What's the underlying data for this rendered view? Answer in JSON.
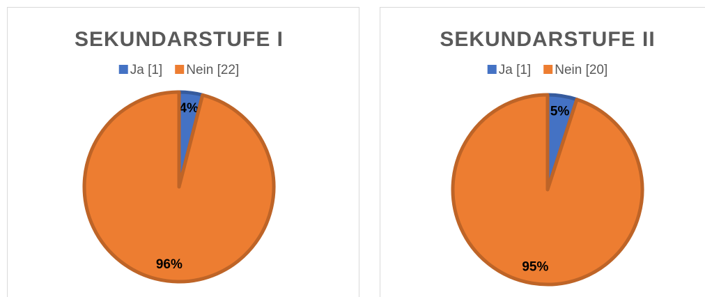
{
  "chart_data": [
    {
      "type": "pie",
      "title": "SEKUNDARSTUFE I",
      "categories": [
        "Ja [1]",
        "Nein [22]"
      ],
      "values": [
        4,
        96
      ],
      "value_labels": [
        "4%",
        "96%"
      ],
      "colors": [
        "#4472c4",
        "#ed7d31"
      ]
    },
    {
      "type": "pie",
      "title": "SEKUNDARSTUFE II",
      "categories": [
        "Ja [1]",
        "Nein [20]"
      ],
      "values": [
        5,
        95
      ],
      "value_labels": [
        "5%",
        "95%"
      ],
      "colors": [
        "#4472c4",
        "#ed7d31"
      ]
    }
  ]
}
